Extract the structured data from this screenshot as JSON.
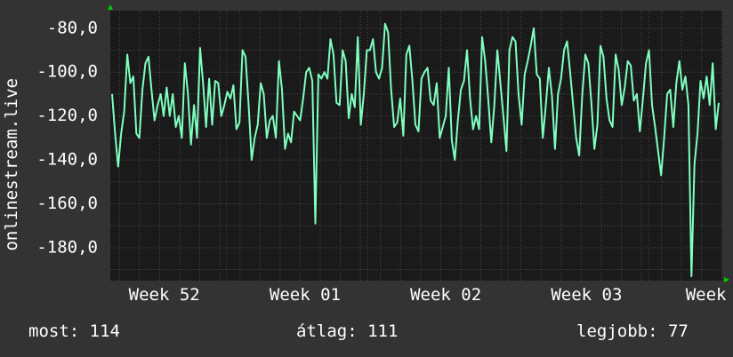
{
  "chart_data": {
    "type": "line",
    "ylabel": "onlinestream.live",
    "ylim": [
      -195,
      -72
    ],
    "yticks": [
      -80,
      -100,
      -120,
      -140,
      -160,
      -180
    ],
    "ytick_labels": [
      "-80,0",
      "-100,0",
      "-120,0",
      "-140,0",
      "-160,0",
      "-180,0"
    ],
    "xlim": [
      0,
      100
    ],
    "xticks": [
      {
        "x": 3,
        "label": "Week 52"
      },
      {
        "x": 26,
        "label": "Week 01"
      },
      {
        "x": 49,
        "label": "Week 02"
      },
      {
        "x": 72,
        "label": "Week 03"
      },
      {
        "x": 94,
        "label": "Week"
      }
    ],
    "series": [
      {
        "color": "#7fffbf",
        "values": [
          -110,
          -128,
          -143,
          -128,
          -118,
          -92,
          -105,
          -102,
          -128,
          -130,
          -108,
          -96,
          -93,
          -108,
          -122,
          -115,
          -110,
          -120,
          -107,
          -120,
          -110,
          -125,
          -120,
          -130,
          -96,
          -110,
          -133,
          -115,
          -130,
          -89,
          -105,
          -125,
          -103,
          -124,
          -104,
          -105,
          -120,
          -115,
          -109,
          -112,
          -106,
          -126,
          -123,
          -90,
          -93,
          -115,
          -140,
          -130,
          -124,
          -105,
          -110,
          -130,
          -122,
          -120,
          -130,
          -95,
          -108,
          -135,
          -128,
          -132,
          -118,
          -120,
          -122,
          -112,
          -100,
          -98,
          -104,
          -169,
          -101,
          -103,
          -100,
          -103,
          -85,
          -92,
          -114,
          -115,
          -90,
          -95,
          -121,
          -110,
          -116,
          -84,
          -124,
          -110,
          -90,
          -90,
          -85,
          -100,
          -103,
          -98,
          -78,
          -82,
          -108,
          -125,
          -123,
          -112,
          -129,
          -92,
          -88,
          -104,
          -124,
          -127,
          -103,
          -100,
          -98,
          -113,
          -115,
          -105,
          -130,
          -125,
          -120,
          -98,
          -131,
          -140,
          -122,
          -108,
          -104,
          -90,
          -112,
          -126,
          -120,
          -126,
          -84,
          -95,
          -112,
          -132,
          -115,
          -90,
          -105,
          -120,
          -136,
          -90,
          -84,
          -86,
          -110,
          -124,
          -101,
          -95,
          -88,
          -80,
          -101,
          -103,
          -130,
          -115,
          -98,
          -111,
          -135,
          -110,
          -103,
          -90,
          -86,
          -100,
          -115,
          -130,
          -138,
          -110,
          -92,
          -96,
          -114,
          -135,
          -124,
          -88,
          -93,
          -112,
          -122,
          -125,
          -92,
          -99,
          -115,
          -107,
          -95,
          -97,
          -113,
          -110,
          -127,
          -112,
          -96,
          -90,
          -115,
          -125,
          -136,
          -147,
          -130,
          -110,
          -108,
          -125,
          -105,
          -95,
          -108,
          -102,
          -115,
          -193,
          -142,
          -128,
          -104,
          -112,
          -102,
          -115,
          -96,
          -126,
          -114
        ]
      }
    ],
    "background": "#1a1a1a",
    "grid": true,
    "legend": [
      {
        "key": "most",
        "label": "most: 114"
      },
      {
        "key": "atlag",
        "label": "átlag: 111"
      },
      {
        "key": "legjobb",
        "label": "legjobb: 77"
      }
    ]
  }
}
